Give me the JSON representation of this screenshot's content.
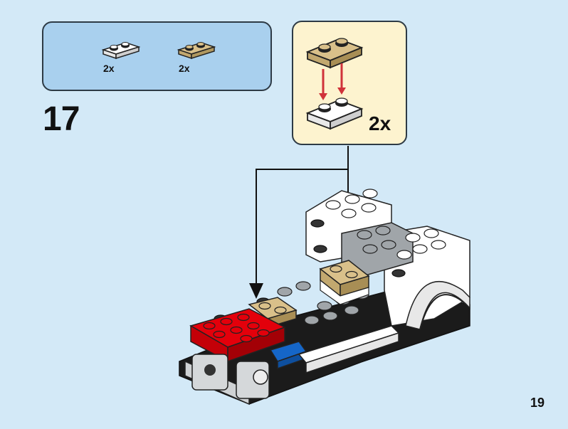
{
  "parts_list": {
    "items": [
      {
        "name": "white-plate-1x2",
        "qty": "2x",
        "color": "#ffffff"
      },
      {
        "name": "tan-plate-1x2",
        "qty": "2x",
        "color": "#d9c08a"
      }
    ]
  },
  "step": {
    "number": "17"
  },
  "callout": {
    "multiplier": "2x"
  },
  "page": {
    "number": "19"
  },
  "colors": {
    "background": "#d3e9f7",
    "parts_box": "#a9d0ee",
    "callout_bg": "#fdf3cf",
    "arrow_red": "#d0323a",
    "brick_red": "#e3000b",
    "brick_tan": "#d9c08a",
    "brick_blue": "#1566c8",
    "brick_gray": "#a0a5a9",
    "brick_dark": "#1b1b1b"
  }
}
